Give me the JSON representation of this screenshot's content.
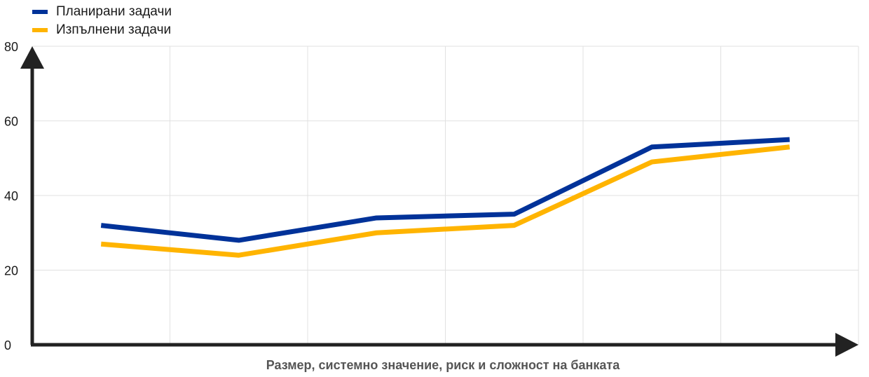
{
  "chart_data": {
    "type": "line",
    "title": "",
    "xlabel": "Размер, системно значение, риск и сложност на банката",
    "ylabel": "",
    "ylim": [
      0,
      80
    ],
    "yticks": [
      "0",
      "20",
      "40",
      "60",
      "80"
    ],
    "x": [
      1,
      2,
      3,
      4,
      5,
      6
    ],
    "grid": true,
    "legend_position": "top-left",
    "series": [
      {
        "name": "Планирани задачи",
        "color": "#003299",
        "values": [
          32,
          28,
          34,
          35,
          53,
          55
        ]
      },
      {
        "name": "Изпълнени задачи",
        "color": "#FFB400",
        "values": [
          27,
          24,
          30,
          32,
          49,
          53
        ]
      }
    ]
  }
}
